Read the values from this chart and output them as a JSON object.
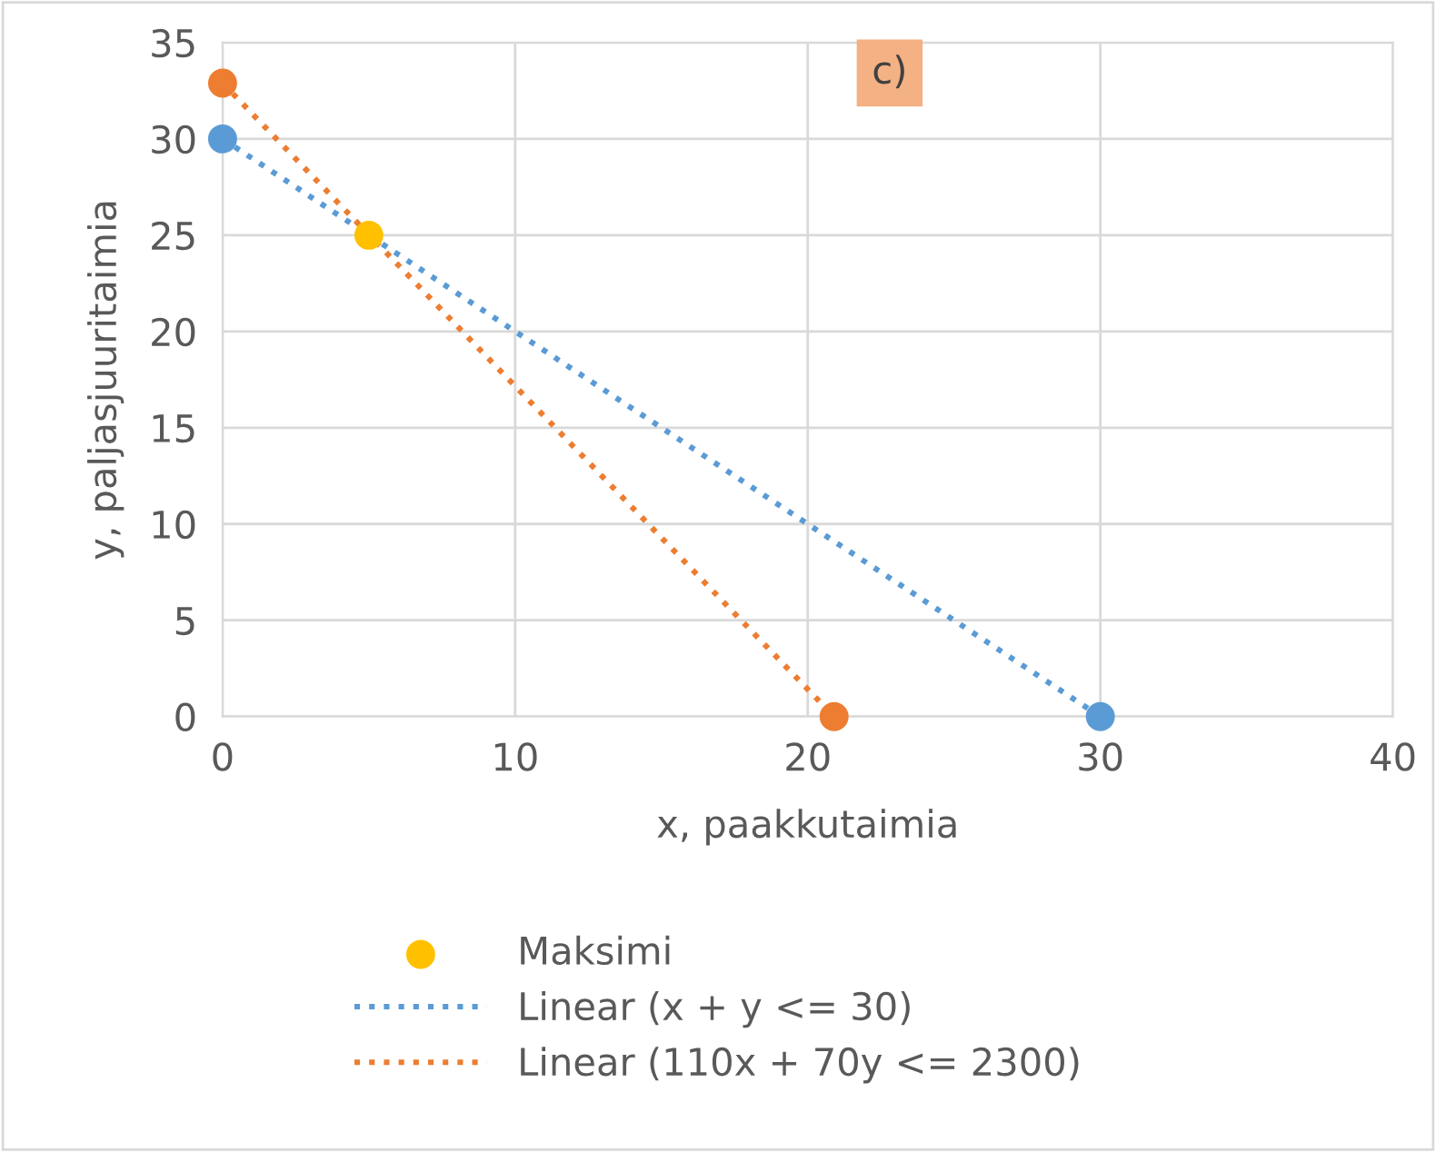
{
  "chart_data": {
    "type": "scatter",
    "xlabel": "x, paakkutaimia",
    "ylabel": "y, paljasjuuritaimia",
    "annotations": [
      "c)"
    ],
    "xlim": [
      0,
      40
    ],
    "ylim": [
      0,
      35
    ],
    "xticks": [
      0,
      10,
      20,
      30,
      40
    ],
    "yticks": [
      0,
      5,
      10,
      15,
      20,
      25,
      30,
      35
    ],
    "grid": true,
    "legend": "bottom",
    "marker": "circle",
    "series": [
      {
        "name": "Maksimi",
        "color": "#ffc000",
        "x": [
          5
        ],
        "values": [
          25
        ]
      },
      {
        "type": "line",
        "name": "Linear (x + y <= 30)",
        "color": "#5b9bd5",
        "line_style": "dotted",
        "marker": "none",
        "x": [
          0,
          30
        ],
        "values": [
          30,
          0
        ]
      },
      {
        "type": "line",
        "name": "Linear (110x + 70y <= 2300)",
        "color": "#ed7d31",
        "line_style": "dotted",
        "marker": "none",
        "x": [
          0,
          20.9
        ],
        "values": [
          32.9,
          0
        ]
      },
      {
        "color": "#5b9bd5",
        "x": [
          0,
          30
        ],
        "values": [
          30,
          0
        ]
      },
      {
        "color": "#ed7d31",
        "x": [
          0,
          20.9
        ],
        "values": [
          32.9,
          0
        ]
      }
    ]
  }
}
